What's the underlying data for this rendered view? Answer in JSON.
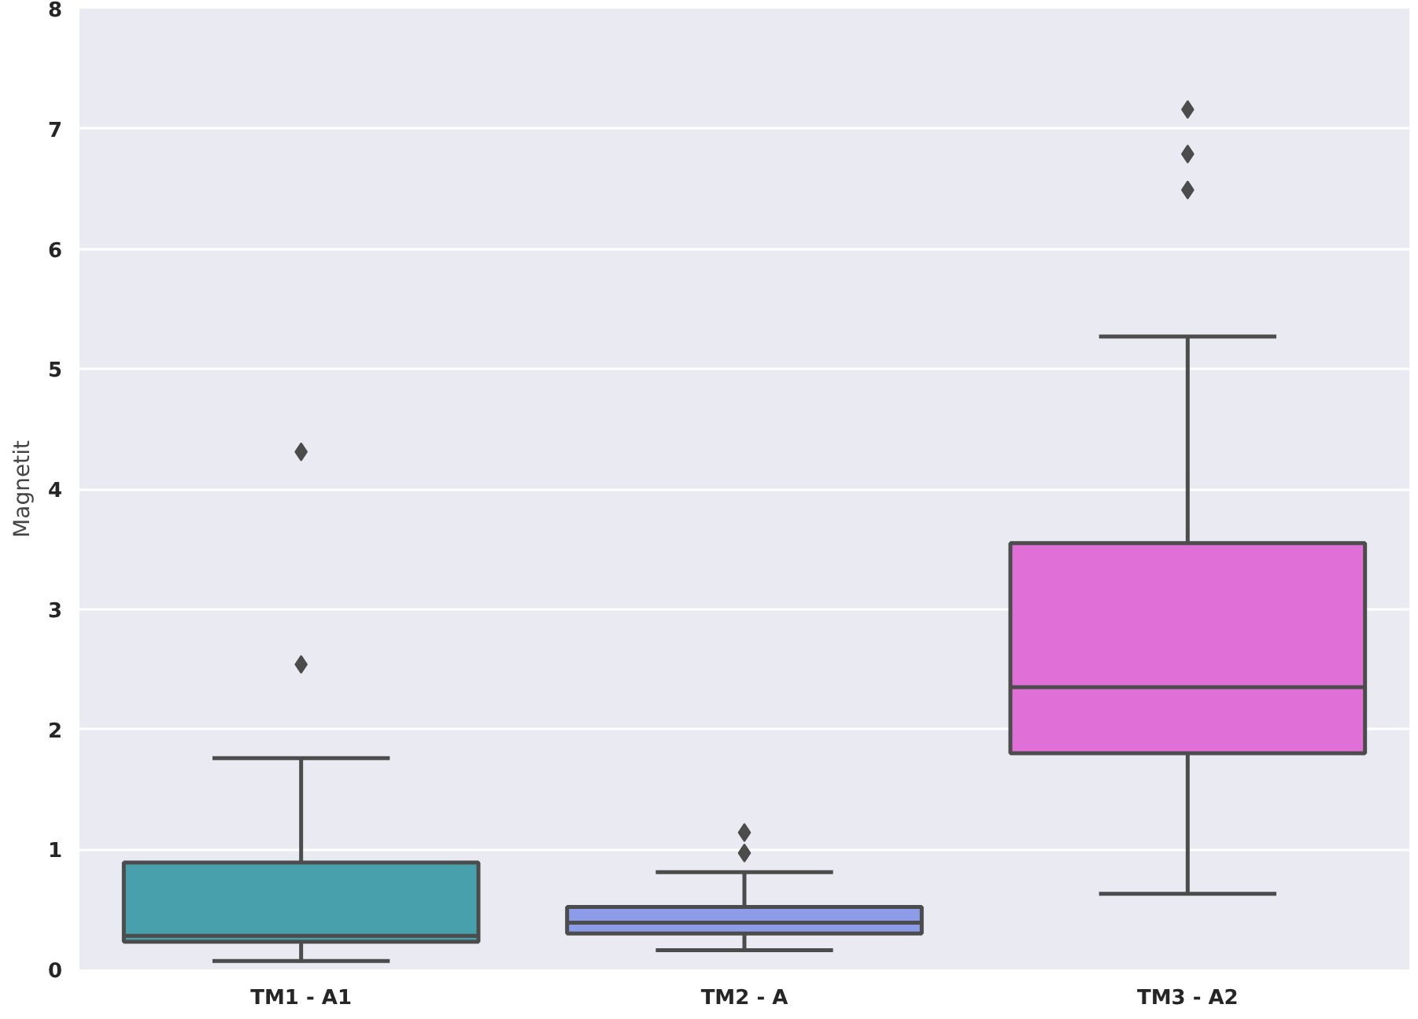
{
  "chart_data": {
    "type": "box",
    "ylabel": "Magnetit",
    "categories": [
      "TM1 - A1",
      "TM2 - A",
      "TM3 - A2"
    ],
    "boxes": [
      {
        "low": 0.07,
        "q1": 0.23,
        "median": 0.28,
        "q3": 0.89,
        "high": 1.76,
        "outliers": [
          4.31,
          2.54
        ]
      },
      {
        "low": 0.16,
        "q1": 0.3,
        "median": 0.39,
        "q3": 0.52,
        "high": 0.81,
        "outliers": [
          1.14,
          0.97
        ]
      },
      {
        "low": 0.63,
        "q1": 1.8,
        "median": 2.35,
        "q3": 3.55,
        "high": 5.27,
        "outliers": [
          7.16,
          6.79,
          6.49
        ]
      }
    ],
    "colors": [
      "#48a0ac",
      "#8c9ce8",
      "#e070d8"
    ],
    "ylim": [
      0,
      8
    ],
    "yticks": [
      0,
      1,
      2,
      3,
      4,
      5,
      6,
      7,
      8
    ],
    "grid": "y",
    "marker": "diamond"
  }
}
